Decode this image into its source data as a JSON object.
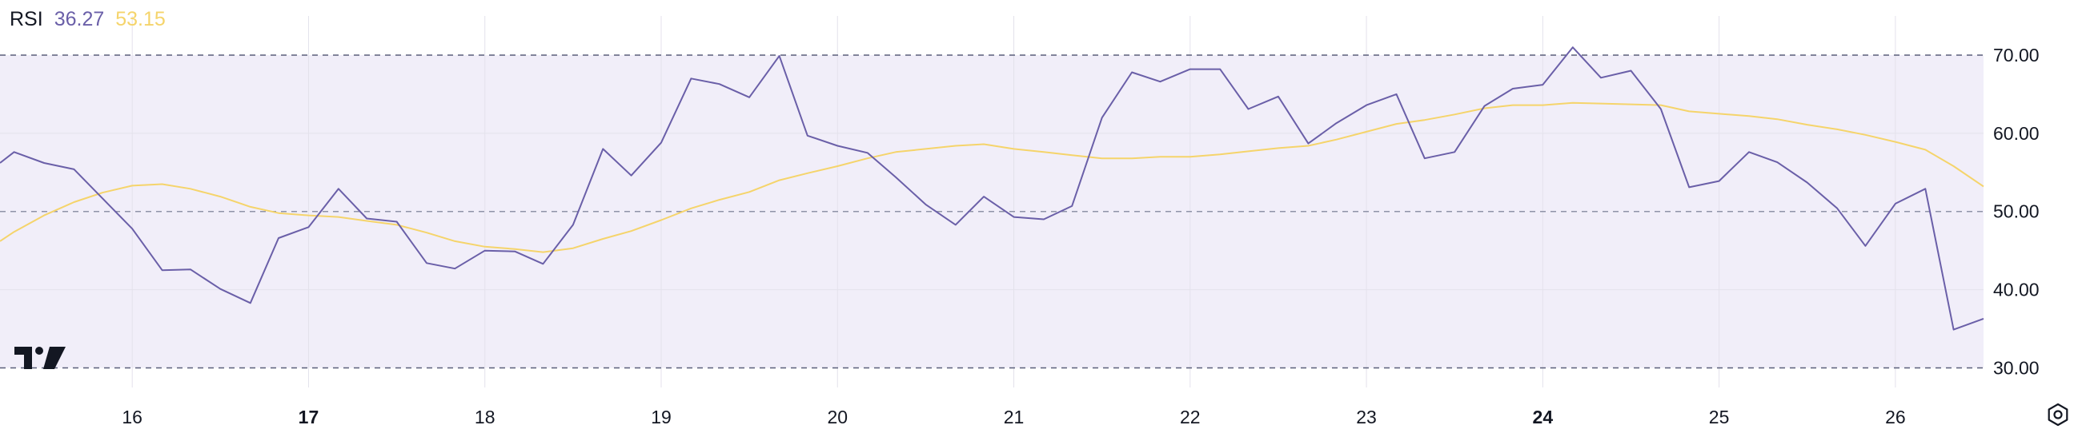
{
  "legend": {
    "label": "RSI",
    "rsi_value": "36.27",
    "ma_value": "53.15"
  },
  "colors": {
    "rsi_line": "#6a5fa8",
    "ma_line": "#f5d46b",
    "band_fill": "#f1eef9",
    "level_line": "#5a5f7a",
    "grid": "#e4e2ec",
    "axis_text": "#131722"
  },
  "icons": {
    "logo": "tradingview-logo-icon",
    "settings": "settings-gear-icon"
  },
  "chart_data": {
    "type": "line",
    "x_range": [
      15.25,
      26.5
    ],
    "ylim": [
      27.5,
      75
    ],
    "upper_band": 70,
    "middle_band": 50,
    "lower_band": 30,
    "grid": true,
    "y_ticks": [
      {
        "value": 70,
        "label": "70.00"
      },
      {
        "value": 60,
        "label": "60.00"
      },
      {
        "value": 50,
        "label": "50.00"
      },
      {
        "value": 40,
        "label": "40.00"
      },
      {
        "value": 30,
        "label": "30.00"
      }
    ],
    "x_ticks": [
      {
        "value": 16,
        "label": "16",
        "bold": false
      },
      {
        "value": 17,
        "label": "17",
        "bold": true
      },
      {
        "value": 18,
        "label": "18",
        "bold": false
      },
      {
        "value": 19,
        "label": "19",
        "bold": false
      },
      {
        "value": 20,
        "label": "20",
        "bold": false
      },
      {
        "value": 21,
        "label": "21",
        "bold": false
      },
      {
        "value": 22,
        "label": "22",
        "bold": false
      },
      {
        "value": 23,
        "label": "23",
        "bold": false
      },
      {
        "value": 24,
        "label": "24",
        "bold": true
      },
      {
        "value": 25,
        "label": "25",
        "bold": false
      },
      {
        "value": 26,
        "label": "26",
        "bold": false
      }
    ],
    "series": [
      {
        "name": "RSI",
        "x": [
          15.25,
          15.33,
          15.5,
          15.67,
          15.83,
          16,
          16.17,
          16.33,
          16.5,
          16.67,
          16.83,
          17,
          17.17,
          17.33,
          17.5,
          17.67,
          17.83,
          18,
          18.17,
          18.33,
          18.5,
          18.67,
          18.83,
          19,
          19.17,
          19.33,
          19.5,
          19.67,
          19.83,
          20,
          20.17,
          20.33,
          20.5,
          20.67,
          20.83,
          21,
          21.17,
          21.33,
          21.5,
          21.67,
          21.83,
          22,
          22.17,
          22.33,
          22.5,
          22.67,
          22.83,
          23,
          23.17,
          23.33,
          23.5,
          23.67,
          23.83,
          24,
          24.17,
          24.33,
          24.5,
          24.67,
          24.83,
          25,
          25.17,
          25.33,
          25.5,
          25.67,
          25.83,
          26,
          26.17,
          26.33,
          26.5
        ],
        "values": [
          56.2,
          57.6,
          56.2,
          55.4,
          51.7,
          47.8,
          42.5,
          42.6,
          40.1,
          38.3,
          46.6,
          48.0,
          52.9,
          49.1,
          48.7,
          43.4,
          42.7,
          45.0,
          44.9,
          43.3,
          48.3,
          58.0,
          54.6,
          58.8,
          67.0,
          66.3,
          64.6,
          69.9,
          59.7,
          58.4,
          57.5,
          54.4,
          50.9,
          48.3,
          51.9,
          49.3,
          49.0,
          50.7,
          62.0,
          67.8,
          66.6,
          68.2,
          68.2,
          63.1,
          64.7,
          58.7,
          61.3,
          63.6,
          65.0,
          56.8,
          57.6,
          63.5,
          65.7,
          66.2,
          71.0,
          67.1,
          68.0,
          63.1,
          53.1,
          53.9,
          57.6,
          56.3,
          53.7,
          50.4,
          45.6,
          51.0,
          52.9,
          34.9,
          36.3
        ]
      },
      {
        "name": "MA",
        "x": [
          15.25,
          15.33,
          15.5,
          15.67,
          15.83,
          16,
          16.17,
          16.33,
          16.5,
          16.67,
          16.83,
          17,
          17.17,
          17.33,
          17.5,
          17.67,
          17.83,
          18,
          18.17,
          18.33,
          18.5,
          18.67,
          18.83,
          19,
          19.17,
          19.33,
          19.5,
          19.67,
          19.83,
          20,
          20.17,
          20.33,
          20.5,
          20.67,
          20.83,
          21,
          21.17,
          21.33,
          21.5,
          21.67,
          21.83,
          22,
          22.17,
          22.33,
          22.5,
          22.67,
          22.83,
          23,
          23.17,
          23.33,
          23.5,
          23.67,
          23.83,
          24,
          24.17,
          24.33,
          24.5,
          24.67,
          24.83,
          25,
          25.17,
          25.33,
          25.5,
          25.67,
          25.83,
          26,
          26.17,
          26.33,
          26.5
        ],
        "values": [
          46.2,
          47.4,
          49.5,
          51.2,
          52.4,
          53.3,
          53.5,
          52.9,
          51.9,
          50.6,
          49.8,
          49.5,
          49.3,
          48.8,
          48.3,
          47.3,
          46.2,
          45.5,
          45.2,
          44.8,
          45.3,
          46.5,
          47.5,
          48.9,
          50.4,
          51.5,
          52.5,
          54.0,
          54.9,
          55.8,
          56.8,
          57.6,
          58.0,
          58.4,
          58.6,
          58.0,
          57.6,
          57.2,
          56.8,
          56.8,
          57.0,
          57.0,
          57.3,
          57.7,
          58.1,
          58.4,
          59.2,
          60.2,
          61.2,
          61.7,
          62.4,
          63.2,
          63.6,
          63.6,
          63.9,
          63.8,
          63.7,
          63.6,
          62.8,
          62.5,
          62.2,
          61.8,
          61.1,
          60.5,
          59.8,
          58.9,
          57.9,
          55.8,
          53.2
        ]
      }
    ]
  }
}
